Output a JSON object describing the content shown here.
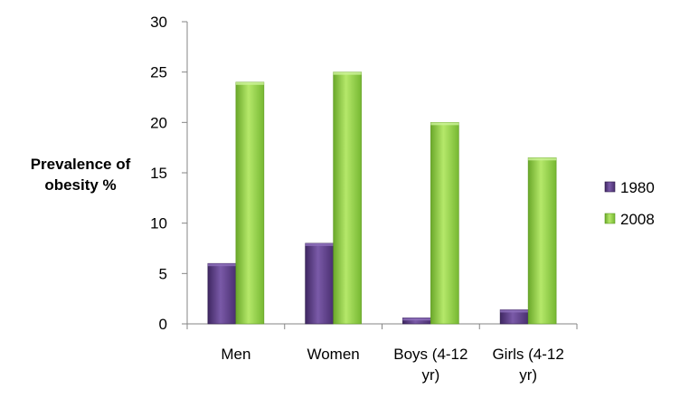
{
  "chart_data": {
    "type": "bar",
    "title": "",
    "xlabel": "",
    "ylabel_lines": [
      "Prevalence of",
      "obesity %"
    ],
    "categories": [
      [
        "Men"
      ],
      [
        "Women"
      ],
      [
        "Boys (4-12",
        "yr)"
      ],
      [
        "Girls (4-12",
        "yr)"
      ]
    ],
    "series": [
      {
        "name": "1980",
        "values": [
          6,
          8,
          0.6,
          1.4
        ],
        "color": "#5b3b85"
      },
      {
        "name": "2008",
        "values": [
          24,
          25,
          20,
          16.5
        ],
        "color": "#8fd13c"
      }
    ],
    "ylim": [
      0,
      30
    ],
    "yticks": [
      "0",
      "5",
      "10",
      "15",
      "20",
      "25",
      "30"
    ],
    "grid": false,
    "legend_position": "right"
  }
}
